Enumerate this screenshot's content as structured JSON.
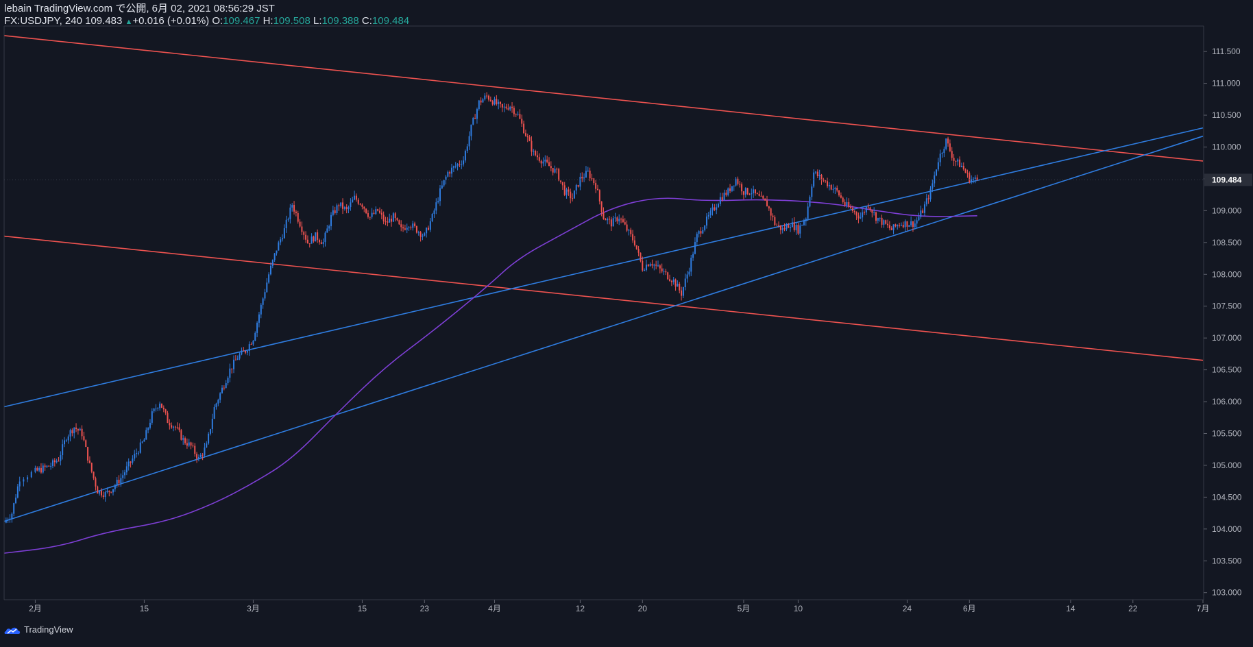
{
  "header": {
    "line1": "lebain TradingView.com で公開, 6月 02, 2021 08:56:29 JST",
    "symbol": "FX:USDJPY, 240",
    "last": "109.483",
    "change": "+0.016 (+0.01%)",
    "o_label": "O:",
    "o_value": "109.467",
    "h_label": "H:",
    "h_value": "109.508",
    "l_label": "L:",
    "l_value": "109.388",
    "c_label": "C:",
    "c_value": "109.484"
  },
  "footer": {
    "brand": "TradingView",
    "icon": "tradingview-cloud-icon"
  },
  "colors": {
    "bg": "#131722",
    "up": "#2f7de1",
    "down": "#ef5350",
    "ma": "#7e3fd6",
    "trend_blue": "#2f7de1",
    "trend_red": "#ef5350",
    "axis_text": "#b2b5be"
  },
  "chart_data": {
    "type": "candlestick",
    "symbol": "FX:USDJPY",
    "ylim": [
      102.9,
      111.9
    ],
    "y_ticks": [
      103.0,
      103.5,
      104.0,
      104.5,
      105.0,
      105.5,
      106.0,
      106.5,
      107.0,
      107.5,
      108.0,
      108.5,
      109.0,
      109.5,
      110.0,
      110.5,
      111.0,
      111.5
    ],
    "y_tick_labels": [
      "103.000",
      "103.500",
      "104.000",
      "104.500",
      "105.000",
      "105.500",
      "106.000",
      "106.500",
      "107.000",
      "107.500",
      "108.000",
      "108.500",
      "109.000",
      "109.500",
      "110.000",
      "110.500",
      "111.000",
      "111.500"
    ],
    "x_range": [
      "2021-01-28",
      "2021-07-01"
    ],
    "x_ticks": [
      {
        "date": "2021-02-01",
        "label": "2月"
      },
      {
        "date": "2021-02-15",
        "label": "15"
      },
      {
        "date": "2021-03-01",
        "label": "3月"
      },
      {
        "date": "2021-03-15",
        "label": "15"
      },
      {
        "date": "2021-03-23",
        "label": "23"
      },
      {
        "date": "2021-04-01",
        "label": "4月"
      },
      {
        "date": "2021-04-12",
        "label": "12"
      },
      {
        "date": "2021-04-20",
        "label": "20"
      },
      {
        "date": "2021-05-03",
        "label": "5月"
      },
      {
        "date": "2021-05-10",
        "label": "10"
      },
      {
        "date": "2021-05-24",
        "label": "24"
      },
      {
        "date": "2021-06-01",
        "label": "6月"
      },
      {
        "date": "2021-06-14",
        "label": "14"
      },
      {
        "date": "2021-06-22",
        "label": "22"
      },
      {
        "date": "2021-07-01",
        "label": "7月"
      }
    ],
    "last_price_label": "109.484",
    "last_price": 109.484,
    "price_path": [
      [
        "2021-01-28",
        104.1
      ],
      [
        "2021-01-29",
        104.25
      ],
      [
        "2021-01-30",
        104.8
      ],
      [
        "2021-02-01",
        104.9
      ],
      [
        "2021-02-02",
        104.95
      ],
      [
        "2021-02-03",
        105.0
      ],
      [
        "2021-02-04",
        105.1
      ],
      [
        "2021-02-05",
        105.45
      ],
      [
        "2021-02-06",
        105.6
      ],
      [
        "2021-02-07",
        105.5
      ],
      [
        "2021-02-08",
        105.0
      ],
      [
        "2021-02-09",
        104.6
      ],
      [
        "2021-02-10",
        104.55
      ],
      [
        "2021-02-11",
        104.65
      ],
      [
        "2021-02-12",
        104.8
      ],
      [
        "2021-02-13",
        105.0
      ],
      [
        "2021-02-14",
        105.2
      ],
      [
        "2021-02-15",
        105.4
      ],
      [
        "2021-02-16",
        105.8
      ],
      [
        "2021-02-17",
        106.0
      ],
      [
        "2021-02-18",
        105.7
      ],
      [
        "2021-02-19",
        105.6
      ],
      [
        "2021-02-20",
        105.4
      ],
      [
        "2021-02-21",
        105.3
      ],
      [
        "2021-02-22",
        105.1
      ],
      [
        "2021-02-23",
        105.3
      ],
      [
        "2021-02-24",
        105.9
      ],
      [
        "2021-02-25",
        106.2
      ],
      [
        "2021-02-26",
        106.5
      ],
      [
        "2021-02-27",
        106.7
      ],
      [
        "2021-02-28",
        106.8
      ],
      [
        "2021-03-01",
        107.0
      ],
      [
        "2021-03-02",
        107.5
      ],
      [
        "2021-03-03",
        108.0
      ],
      [
        "2021-03-04",
        108.4
      ],
      [
        "2021-03-05",
        108.7
      ],
      [
        "2021-03-06",
        109.1
      ],
      [
        "2021-03-07",
        108.8
      ],
      [
        "2021-03-08",
        108.5
      ],
      [
        "2021-03-09",
        108.6
      ],
      [
        "2021-03-10",
        108.5
      ],
      [
        "2021-03-11",
        108.9
      ],
      [
        "2021-03-12",
        109.1
      ],
      [
        "2021-03-13",
        109.0
      ],
      [
        "2021-03-14",
        109.2
      ],
      [
        "2021-03-15",
        109.1
      ],
      [
        "2021-03-16",
        108.9
      ],
      [
        "2021-03-17",
        109.0
      ],
      [
        "2021-03-18",
        108.8
      ],
      [
        "2021-03-19",
        108.9
      ],
      [
        "2021-03-20",
        108.7
      ],
      [
        "2021-03-21",
        108.8
      ],
      [
        "2021-03-22",
        108.7
      ],
      [
        "2021-03-23",
        108.6
      ],
      [
        "2021-03-24",
        108.9
      ],
      [
        "2021-03-25",
        109.3
      ],
      [
        "2021-03-26",
        109.6
      ],
      [
        "2021-03-27",
        109.7
      ],
      [
        "2021-03-28",
        109.8
      ],
      [
        "2021-03-29",
        110.3
      ],
      [
        "2021-03-30",
        110.7
      ],
      [
        "2021-03-31",
        110.8
      ],
      [
        "2021-04-01",
        110.7
      ],
      [
        "2021-04-02",
        110.6
      ],
      [
        "2021-04-03",
        110.65
      ],
      [
        "2021-04-04",
        110.5
      ],
      [
        "2021-04-05",
        110.2
      ],
      [
        "2021-04-06",
        109.9
      ],
      [
        "2021-04-07",
        109.8
      ],
      [
        "2021-04-08",
        109.7
      ],
      [
        "2021-04-09",
        109.6
      ],
      [
        "2021-04-10",
        109.3
      ],
      [
        "2021-04-11",
        109.2
      ],
      [
        "2021-04-12",
        109.5
      ],
      [
        "2021-04-13",
        109.6
      ],
      [
        "2021-04-14",
        109.4
      ],
      [
        "2021-04-15",
        108.9
      ],
      [
        "2021-04-16",
        108.8
      ],
      [
        "2021-04-17",
        108.9
      ],
      [
        "2021-04-18",
        108.7
      ],
      [
        "2021-04-19",
        108.5
      ],
      [
        "2021-04-20",
        108.1
      ],
      [
        "2021-04-21",
        108.2
      ],
      [
        "2021-04-22",
        108.1
      ],
      [
        "2021-04-23",
        108.0
      ],
      [
        "2021-04-24",
        107.9
      ],
      [
        "2021-04-25",
        107.7
      ],
      [
        "2021-04-26",
        108.1
      ],
      [
        "2021-04-27",
        108.6
      ],
      [
        "2021-04-28",
        108.8
      ],
      [
        "2021-04-29",
        109.0
      ],
      [
        "2021-04-30",
        109.2
      ],
      [
        "2021-05-01",
        109.3
      ],
      [
        "2021-05-02",
        109.5
      ],
      [
        "2021-05-03",
        109.3
      ],
      [
        "2021-05-04",
        109.3
      ],
      [
        "2021-05-05",
        109.2
      ],
      [
        "2021-05-06",
        109.1
      ],
      [
        "2021-05-07",
        108.8
      ],
      [
        "2021-05-08",
        108.7
      ],
      [
        "2021-05-09",
        108.8
      ],
      [
        "2021-05-10",
        108.7
      ],
      [
        "2021-05-11",
        108.9
      ],
      [
        "2021-05-12",
        109.6
      ],
      [
        "2021-05-13",
        109.5
      ],
      [
        "2021-05-14",
        109.4
      ],
      [
        "2021-05-15",
        109.3
      ],
      [
        "2021-05-16",
        109.1
      ],
      [
        "2021-05-17",
        109.0
      ],
      [
        "2021-05-18",
        108.9
      ],
      [
        "2021-05-19",
        109.1
      ],
      [
        "2021-05-20",
        108.9
      ],
      [
        "2021-05-21",
        108.8
      ],
      [
        "2021-05-22",
        108.7
      ],
      [
        "2021-05-23",
        108.8
      ],
      [
        "2021-05-24",
        108.8
      ],
      [
        "2021-05-25",
        108.8
      ],
      [
        "2021-05-26",
        109.0
      ],
      [
        "2021-05-27",
        109.3
      ],
      [
        "2021-05-28",
        109.8
      ],
      [
        "2021-05-29",
        110.1
      ],
      [
        "2021-05-30",
        109.8
      ],
      [
        "2021-05-31",
        109.7
      ],
      [
        "2021-06-01",
        109.5
      ],
      [
        "2021-06-02",
        109.48
      ]
    ],
    "ma_path": [
      [
        "2021-01-28",
        103.62
      ],
      [
        "2021-02-04",
        103.72
      ],
      [
        "2021-02-10",
        103.95
      ],
      [
        "2021-02-18",
        104.12
      ],
      [
        "2021-02-24",
        104.4
      ],
      [
        "2021-03-01",
        104.72
      ],
      [
        "2021-03-06",
        105.1
      ],
      [
        "2021-03-12",
        105.85
      ],
      [
        "2021-03-18",
        106.55
      ],
      [
        "2021-03-24",
        107.1
      ],
      [
        "2021-03-31",
        107.8
      ],
      [
        "2021-04-04",
        108.25
      ],
      [
        "2021-04-10",
        108.65
      ],
      [
        "2021-04-16",
        109.05
      ],
      [
        "2021-04-22",
        109.22
      ],
      [
        "2021-04-28",
        109.15
      ],
      [
        "2021-05-06",
        109.18
      ],
      [
        "2021-05-14",
        109.12
      ],
      [
        "2021-05-20",
        109.0
      ],
      [
        "2021-05-26",
        108.9
      ],
      [
        "2021-06-02",
        108.92
      ]
    ],
    "trend_lines": [
      {
        "color": "#ef5350",
        "from": [
          "2021-01-28",
          111.75
        ],
        "to": [
          "2021-07-01",
          109.78
        ]
      },
      {
        "color": "#ef5350",
        "from": [
          "2021-01-28",
          108.6
        ],
        "to": [
          "2021-07-01",
          106.65
        ]
      },
      {
        "color": "#2f7de1",
        "from": [
          "2021-01-28",
          105.92
        ],
        "to": [
          "2021-07-01",
          110.3
        ]
      },
      {
        "color": "#2f7de1",
        "from": [
          "2021-01-28",
          104.12
        ],
        "to": [
          "2021-07-01",
          110.17
        ]
      }
    ]
  }
}
